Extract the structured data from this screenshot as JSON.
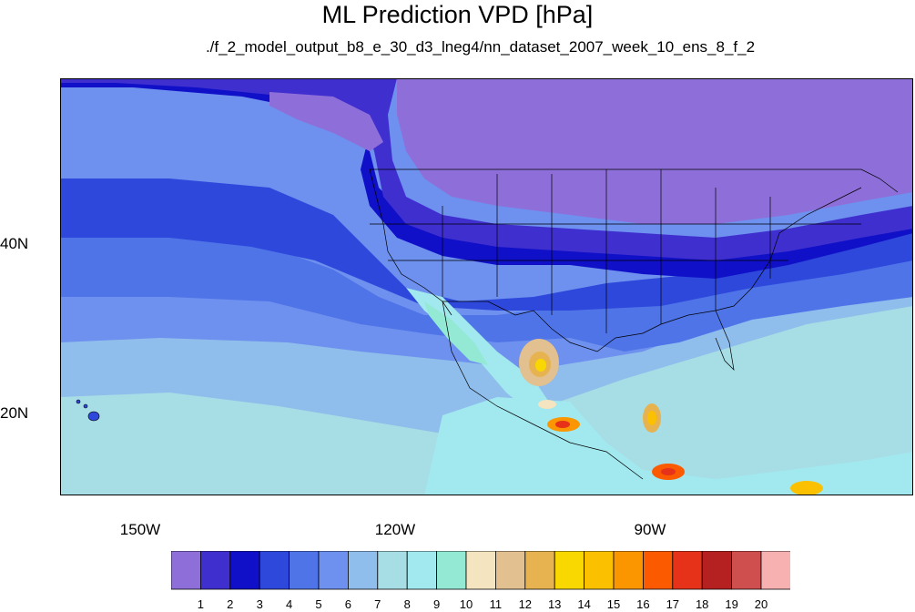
{
  "title": "ML Prediction VPD [hPa]",
  "subtitle": "./f_2_model_output_b8_e_30_d3_lneg4/nn_dataset_2007_week_10_ens_8_f_2",
  "axes": {
    "lat_labels": [
      "40N",
      "20N"
    ],
    "lon_labels": [
      "150W",
      "120W",
      "90W"
    ]
  },
  "colorbar": {
    "labels": [
      "1",
      "2",
      "3",
      "4",
      "5",
      "6",
      "7",
      "8",
      "9",
      "10",
      "11",
      "12",
      "13",
      "14",
      "15",
      "16",
      "17",
      "18",
      "19",
      "20"
    ],
    "colors": [
      "#8e6fd9",
      "#3f2fcf",
      "#1010c8",
      "#2e48dc",
      "#4f74e8",
      "#6e90ee",
      "#8fbdec",
      "#a7dde4",
      "#a2e8ef",
      "#94e9d5",
      "#f4e4c0",
      "#e2c08f",
      "#e6b350",
      "#f8d800",
      "#fbc000",
      "#fb9600",
      "#fb5a00",
      "#e53218",
      "#b52020",
      "#cf4e4e",
      "#f8b1b1"
    ]
  },
  "colors": {
    "ocean_west": "#2e48dc",
    "north": "#8e6fd9",
    "south_sea": "#a2e8ef"
  }
}
